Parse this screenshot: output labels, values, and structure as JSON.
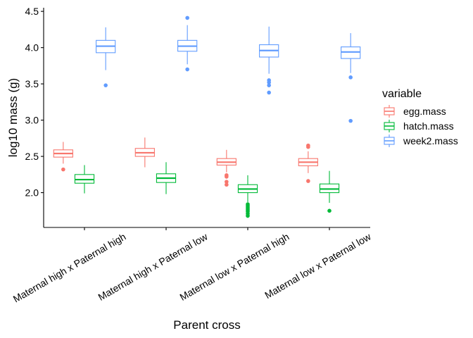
{
  "chart_data": {
    "type": "boxplot",
    "xlabel": "Parent cross",
    "ylabel": "log10 mass (g)",
    "ylim": [
      1.52,
      4.55
    ],
    "yticks": [
      "2.0",
      "2.5",
      "3.0",
      "3.5",
      "4.0",
      "4.5"
    ],
    "categories": [
      "Maternal high x Paternal high",
      "Maternal high x Paternal low",
      "Maternal low x Paternal high",
      "Maternal low x Paternal low"
    ],
    "legend": {
      "title": "variable",
      "position": "right"
    },
    "grid": false,
    "series": [
      {
        "name": "egg.mass",
        "color": "#F8766D",
        "boxes": [
          {
            "lower_whisker": 2.4,
            "q1": 2.49,
            "median": 2.54,
            "q3": 2.59,
            "upper_whisker": 2.7,
            "outliers": [
              2.32
            ]
          },
          {
            "lower_whisker": 2.35,
            "q1": 2.5,
            "median": 2.55,
            "q3": 2.61,
            "upper_whisker": 2.76,
            "outliers": []
          },
          {
            "lower_whisker": 2.28,
            "q1": 2.38,
            "median": 2.42,
            "q3": 2.47,
            "upper_whisker": 2.59,
            "outliers": [
              2.24,
              2.22,
              2.15,
              2.11
            ]
          },
          {
            "lower_whisker": 2.27,
            "q1": 2.37,
            "median": 2.42,
            "q3": 2.47,
            "upper_whisker": 2.57,
            "outliers": [
              2.65,
              2.63,
              2.16
            ]
          }
        ]
      },
      {
        "name": "hatch.mass",
        "color": "#00BA38",
        "boxes": [
          {
            "lower_whisker": 1.99,
            "q1": 2.13,
            "median": 2.18,
            "q3": 2.25,
            "upper_whisker": 2.38,
            "outliers": []
          },
          {
            "lower_whisker": 1.98,
            "q1": 2.14,
            "median": 2.2,
            "q3": 2.26,
            "upper_whisker": 2.42,
            "outliers": []
          },
          {
            "lower_whisker": 1.87,
            "q1": 2.0,
            "median": 2.05,
            "q3": 2.11,
            "upper_whisker": 2.24,
            "outliers": [
              1.84,
              1.82,
              1.8,
              1.78,
              1.76,
              1.74,
              1.71,
              1.68
            ]
          },
          {
            "lower_whisker": 1.86,
            "q1": 2.0,
            "median": 2.05,
            "q3": 2.12,
            "upper_whisker": 2.3,
            "outliers": [
              1.75
            ]
          }
        ]
      },
      {
        "name": "week2.mass",
        "color": "#619CFF",
        "boxes": [
          {
            "lower_whisker": 3.69,
            "q1": 3.93,
            "median": 4.02,
            "q3": 4.1,
            "upper_whisker": 4.28,
            "outliers": [
              3.48
            ]
          },
          {
            "lower_whisker": 3.77,
            "q1": 3.95,
            "median": 4.02,
            "q3": 4.1,
            "upper_whisker": 4.31,
            "outliers": [
              4.41,
              3.7
            ]
          },
          {
            "lower_whisker": 3.64,
            "q1": 3.87,
            "median": 3.96,
            "q3": 4.04,
            "upper_whisker": 4.29,
            "outliers": [
              3.55,
              3.52,
              3.48,
              3.38
            ]
          },
          {
            "lower_whisker": 3.65,
            "q1": 3.85,
            "median": 3.94,
            "q3": 4.01,
            "upper_whisker": 4.2,
            "outliers": [
              3.59,
              2.99
            ]
          }
        ]
      }
    ]
  }
}
